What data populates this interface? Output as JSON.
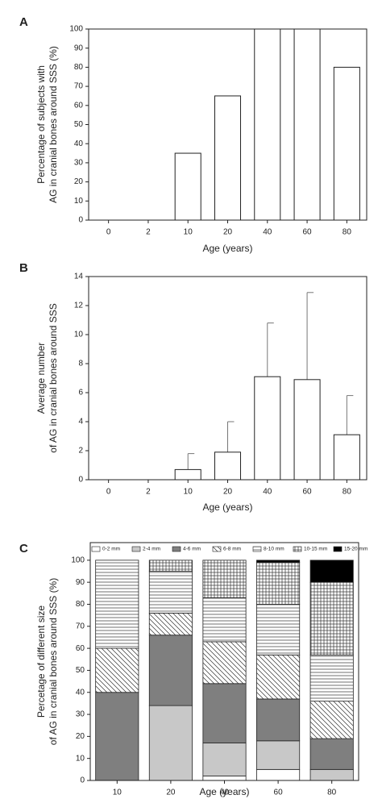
{
  "chart_data": [
    {
      "type": "bar",
      "panel": "A",
      "categories": [
        "0",
        "2",
        "10",
        "20",
        "40",
        "60",
        "80"
      ],
      "values": [
        0,
        0,
        35,
        65,
        100,
        100,
        80
      ],
      "color": "#ffffff",
      "ylim": [
        0,
        100
      ],
      "yticks": [
        0,
        10,
        20,
        30,
        40,
        50,
        60,
        70,
        80,
        90,
        100
      ],
      "ylabel": [
        "Percentage of subjects with",
        "AG in cranial bones around SSS (%)"
      ],
      "xlabel": "Age (years)"
    },
    {
      "type": "bar",
      "panel": "B",
      "categories": [
        "0",
        "2",
        "10",
        "20",
        "40",
        "60",
        "80"
      ],
      "values": [
        0,
        0,
        0.7,
        1.9,
        7.1,
        6.9,
        3.1
      ],
      "errors": [
        0,
        0,
        1.1,
        2.1,
        3.7,
        6.0,
        2.7
      ],
      "color": "#ffffff",
      "ylim": [
        0,
        14
      ],
      "yticks": [
        0,
        2,
        4,
        6,
        8,
        10,
        12,
        14
      ],
      "ylabel": [
        "Average number",
        "of AG in cranial bones around SSS"
      ],
      "xlabel": "Age (years)"
    },
    {
      "type": "stacked_bar",
      "panel": "C",
      "categories": [
        "10",
        "20",
        "40",
        "60",
        "80"
      ],
      "series": [
        {
          "name": "0-2 mm",
          "color": "#ffffff",
          "pattern": "solid",
          "values": [
            0,
            0,
            2,
            5,
            0
          ]
        },
        {
          "name": "2-4 mm",
          "color": "#c8c8c8",
          "pattern": "solid",
          "values": [
            0,
            34,
            15,
            13,
            5
          ]
        },
        {
          "name": "4-6 mm",
          "color": "#7f7f7f",
          "pattern": "solid",
          "values": [
            40,
            32,
            27,
            19,
            14
          ]
        },
        {
          "name": "6-8 mm",
          "color": "#ffffff",
          "pattern": "diagonal",
          "values": [
            20,
            10,
            19,
            20,
            17
          ]
        },
        {
          "name": "8-10 mm",
          "color": "#ffffff",
          "pattern": "horizontal",
          "values": [
            40,
            19,
            20,
            23,
            21
          ]
        },
        {
          "name": "10-15 mm",
          "color": "#ffffff",
          "pattern": "grid",
          "values": [
            0,
            5,
            17,
            19,
            33
          ]
        },
        {
          "name": "15-20 mm",
          "color": "#000000",
          "pattern": "solid",
          "values": [
            0,
            0,
            0,
            1,
            10
          ]
        }
      ],
      "ylim": [
        0,
        108
      ],
      "yticks": [
        0,
        10,
        20,
        30,
        40,
        50,
        60,
        70,
        80,
        90,
        100
      ],
      "ylabel": [
        "Percetage of different size",
        "of AG in cranial bones around SSS (%)"
      ],
      "xlabel": "Age (years)"
    }
  ]
}
